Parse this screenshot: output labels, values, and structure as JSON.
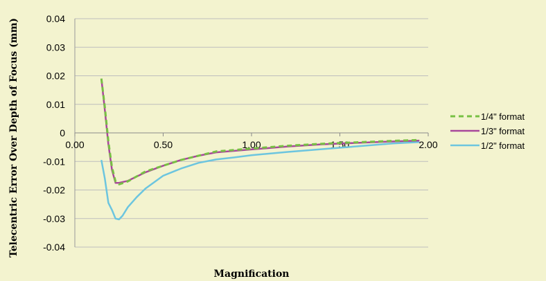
{
  "chart_data": {
    "type": "line",
    "xlabel": "Magnification",
    "ylabel": "Telecentric Error Over Depth of Focus (mm)",
    "xlim": [
      0,
      2
    ],
    "ylim": [
      -0.04,
      0.04
    ],
    "x_ticks": [
      "0.00",
      "0.50",
      "1.00",
      "1.50",
      "2.00"
    ],
    "y_ticks": [
      "0.04",
      "0.03",
      "0.02",
      "0.01",
      "0",
      "-0.01",
      "-0.02",
      "-0.03",
      "-0.04"
    ],
    "grid": "horizontal",
    "legend_position": "right",
    "series": [
      {
        "name": "1/4\" format",
        "color": "#77c043",
        "style": "dashed",
        "points": [
          [
            0.15,
            0.019
          ],
          [
            0.17,
            0.009
          ],
          [
            0.19,
            -0.003
          ],
          [
            0.21,
            -0.012
          ],
          [
            0.23,
            -0.017
          ],
          [
            0.25,
            -0.018
          ],
          [
            0.3,
            -0.017
          ],
          [
            0.4,
            -0.0135
          ],
          [
            0.5,
            -0.0115
          ],
          [
            0.6,
            -0.0095
          ],
          [
            0.7,
            -0.008
          ],
          [
            0.8,
            -0.0065
          ],
          [
            1.0,
            -0.0055
          ],
          [
            1.2,
            -0.0045
          ],
          [
            1.4,
            -0.0038
          ],
          [
            1.6,
            -0.0033
          ],
          [
            1.8,
            -0.0028
          ],
          [
            1.95,
            -0.0025
          ]
        ]
      },
      {
        "name": "1/3\" format",
        "color": "#a8479b",
        "style": "solid",
        "points": [
          [
            0.15,
            0.019
          ],
          [
            0.17,
            0.008
          ],
          [
            0.19,
            -0.004
          ],
          [
            0.21,
            -0.013
          ],
          [
            0.23,
            -0.0175
          ],
          [
            0.25,
            -0.0175
          ],
          [
            0.3,
            -0.0168
          ],
          [
            0.4,
            -0.0138
          ],
          [
            0.5,
            -0.0115
          ],
          [
            0.6,
            -0.0095
          ],
          [
            0.7,
            -0.008
          ],
          [
            0.8,
            -0.0068
          ],
          [
            1.0,
            -0.0058
          ],
          [
            1.2,
            -0.0048
          ],
          [
            1.4,
            -0.004
          ],
          [
            1.6,
            -0.0035
          ],
          [
            1.8,
            -0.003
          ],
          [
            1.95,
            -0.0027
          ]
        ]
      },
      {
        "name": "1/2\" format",
        "color": "#6cc5df",
        "style": "solid",
        "points": [
          [
            0.15,
            -0.0095
          ],
          [
            0.17,
            -0.016
          ],
          [
            0.19,
            -0.0245
          ],
          [
            0.21,
            -0.027
          ],
          [
            0.23,
            -0.03
          ],
          [
            0.25,
            -0.0303
          ],
          [
            0.27,
            -0.029
          ],
          [
            0.3,
            -0.026
          ],
          [
            0.35,
            -0.0225
          ],
          [
            0.4,
            -0.0195
          ],
          [
            0.5,
            -0.015
          ],
          [
            0.6,
            -0.0125
          ],
          [
            0.7,
            -0.0105
          ],
          [
            0.8,
            -0.0093
          ],
          [
            0.9,
            -0.0086
          ],
          [
            1.0,
            -0.0078
          ],
          [
            1.2,
            -0.0067
          ],
          [
            1.4,
            -0.0057
          ],
          [
            1.6,
            -0.0047
          ],
          [
            1.8,
            -0.0037
          ],
          [
            1.95,
            -0.0032
          ]
        ]
      }
    ]
  }
}
